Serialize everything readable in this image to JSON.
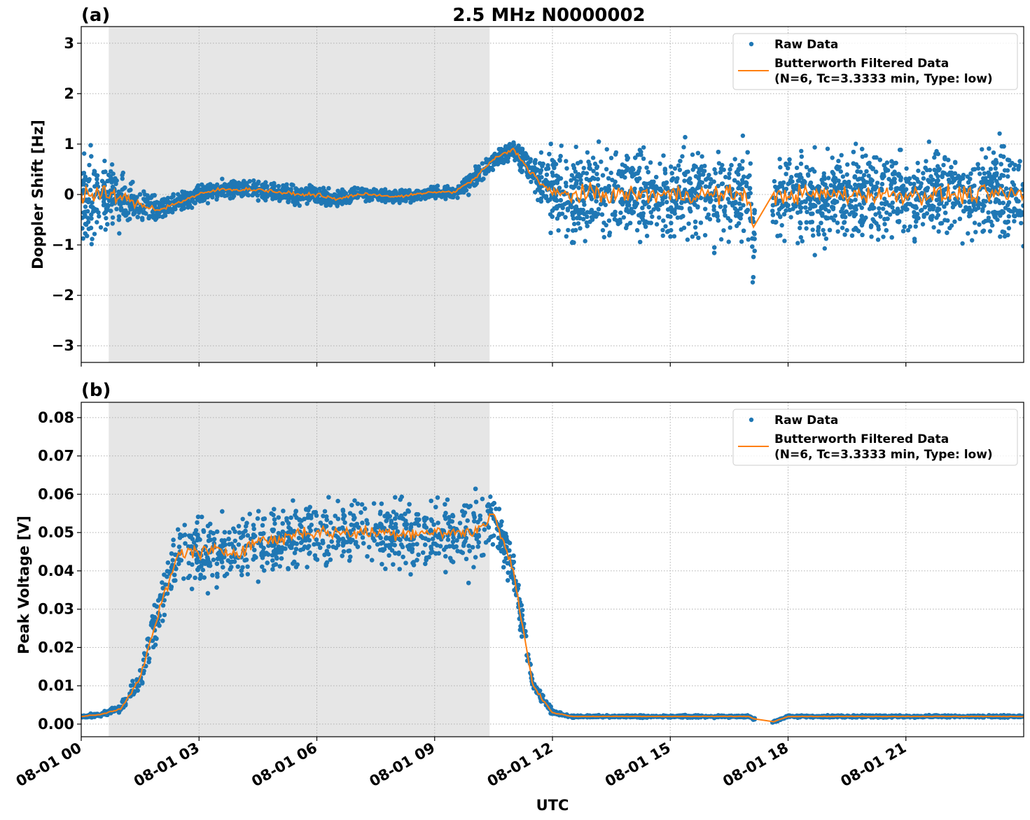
{
  "title": "2.5 MHz N0000002",
  "colors": {
    "raw": "#1f77b4",
    "filtered": "#ff7f0e",
    "shade": "#e6e6e6",
    "grid": "#b0b0b0"
  },
  "chart_data": [
    {
      "type": "scatter",
      "panel_label": "(a)",
      "ylabel": "Doppler Shift [Hz]",
      "xlabel": "",
      "xlim_hours": [
        0,
        24
      ],
      "ylim": [
        -3.33,
        3.33
      ],
      "yticks": [
        3,
        2,
        1,
        0,
        -1,
        -2,
        -3
      ],
      "ytick_labels": [
        "3",
        "2",
        "1",
        "0",
        "−1",
        "−2",
        "−3"
      ],
      "grid": true,
      "shaded_interval": [
        "08-01 00:42",
        "08-01 10:24"
      ],
      "data_gap": [
        "08-01 17:09",
        "08-01 17:36"
      ],
      "legend": {
        "placement": "top-right",
        "entries": [
          "Raw Data",
          "Butterworth Filtered Data",
          "(N=6, Tc=3.3333 min, Type: low)"
        ]
      },
      "series": [
        {
          "name": "Butterworth Filtered Data",
          "kind": "line",
          "x_hours": [
            0,
            0.5,
            1,
            1.5,
            2,
            2.5,
            3,
            3.5,
            4,
            4.5,
            5,
            5.5,
            6,
            6.5,
            7,
            7.5,
            8,
            8.5,
            9,
            9.5,
            10,
            10.5,
            11,
            11.5,
            12,
            12.5,
            13,
            13.5,
            14,
            14.5,
            15,
            15.5,
            16,
            16.5,
            17,
            17.1,
            17.6,
            18,
            18.5,
            19,
            19.5,
            20,
            20.5,
            21,
            21.5,
            22,
            22.5,
            23,
            23.5,
            24
          ],
          "y": [
            0,
            0,
            -0.05,
            -0.2,
            -0.3,
            -0.15,
            0,
            0.1,
            0.1,
            0.1,
            0.05,
            0,
            0,
            -0.1,
            0,
            0,
            -0.05,
            0,
            0.05,
            0.05,
            0.3,
            0.7,
            0.9,
            0.4,
            0,
            0,
            0,
            0,
            0,
            0,
            0,
            0,
            0,
            0,
            0,
            -0.7,
            -0.1,
            0,
            0,
            0,
            0,
            0,
            0,
            0,
            0,
            0,
            0,
            0,
            0,
            0
          ]
        },
        {
          "name": "Raw Data",
          "kind": "scatter_envelope",
          "x_hours": [
            0,
            0.5,
            1,
            1.5,
            2,
            2.5,
            3,
            3.5,
            4,
            4.5,
            5,
            5.5,
            6,
            6.5,
            7,
            7.5,
            8,
            8.5,
            9,
            9.5,
            10,
            10.5,
            11,
            11.5,
            12,
            12.5,
            13,
            13.5,
            14,
            14.5,
            15,
            15.5,
            16,
            16.5,
            17,
            17.1,
            17.6,
            18,
            18.5,
            19,
            19.5,
            20,
            20.5,
            21,
            21.5,
            22,
            22.5,
            23,
            23.5,
            24
          ],
          "half_spread": [
            1.6,
            1.4,
            1.0,
            0.6,
            0.4,
            0.35,
            0.3,
            0.3,
            0.3,
            0.3,
            0.3,
            0.3,
            0.3,
            0.3,
            0.25,
            0.2,
            0.2,
            0.2,
            0.2,
            0.2,
            0.3,
            0.3,
            0.3,
            0.6,
            1.3,
            1.5,
            1.5,
            1.5,
            1.5,
            1.5,
            1.5,
            1.5,
            1.5,
            1.5,
            1.5,
            1.5,
            1.5,
            1.5,
            1.5,
            1.5,
            1.5,
            1.5,
            1.5,
            1.5,
            1.5,
            1.5,
            1.5,
            1.5,
            1.5,
            1.5
          ]
        }
      ]
    },
    {
      "type": "scatter",
      "panel_label": "(b)",
      "ylabel": "Peak Voltage [V]",
      "xlabel": "UTC",
      "xlim_hours": [
        0,
        24
      ],
      "ylim": [
        -0.0033,
        0.084
      ],
      "yticks": [
        0.08,
        0.07,
        0.06,
        0.05,
        0.04,
        0.03,
        0.02,
        0.01,
        0.0
      ],
      "ytick_labels": [
        "0.08",
        "0.07",
        "0.06",
        "0.05",
        "0.04",
        "0.03",
        "0.02",
        "0.01",
        "0.00"
      ],
      "xticks_hours": [
        0,
        3,
        6,
        9,
        12,
        15,
        18,
        21
      ],
      "xtick_labels": [
        "08-01 00",
        "08-01 03",
        "08-01 06",
        "08-01 09",
        "08-01 12",
        "08-01 15",
        "08-01 18",
        "08-01 21"
      ],
      "grid": true,
      "shaded_interval": [
        "08-01 00:42",
        "08-01 10:24"
      ],
      "data_gap": [
        "08-01 17:09",
        "08-01 17:36"
      ],
      "legend": {
        "placement": "top-right",
        "entries": [
          "Raw Data",
          "Butterworth Filtered Data",
          "(N=6, Tc=3.3333 min, Type: low)"
        ]
      },
      "series": [
        {
          "name": "Butterworth Filtered Data",
          "kind": "line",
          "x_hours": [
            0,
            0.5,
            1,
            1.5,
            2,
            2.5,
            3,
            3.5,
            4,
            4.5,
            5,
            5.5,
            6,
            6.5,
            7,
            7.5,
            8,
            8.5,
            9,
            9.5,
            10,
            10.5,
            11,
            11.5,
            12,
            12.5,
            13,
            14,
            15,
            16,
            17,
            17.1,
            17.6,
            18,
            19,
            20,
            21,
            22,
            23,
            24
          ],
          "y": [
            0.002,
            0.0025,
            0.004,
            0.012,
            0.03,
            0.045,
            0.045,
            0.045,
            0.045,
            0.048,
            0.048,
            0.05,
            0.05,
            0.05,
            0.05,
            0.05,
            0.05,
            0.05,
            0.05,
            0.05,
            0.05,
            0.055,
            0.04,
            0.01,
            0.003,
            0.002,
            0.002,
            0.002,
            0.002,
            0.002,
            0.002,
            0.0015,
            0.0005,
            0.002,
            0.002,
            0.002,
            0.002,
            0.002,
            0.002,
            0.002
          ]
        },
        {
          "name": "Raw Data",
          "kind": "scatter_envelope",
          "x_hours": [
            0,
            0.5,
            1,
            1.5,
            2,
            2.5,
            3,
            3.5,
            4,
            4.5,
            5,
            5.5,
            6,
            6.5,
            7,
            7.5,
            8,
            8.5,
            9,
            9.5,
            10,
            10.5,
            11,
            11.5,
            12,
            12.5,
            13,
            14,
            15,
            16,
            17,
            17.1,
            17.6,
            18,
            19,
            20,
            21,
            22,
            23,
            24
          ],
          "half_spread": [
            0.0005,
            0.001,
            0.002,
            0.006,
            0.012,
            0.015,
            0.015,
            0.015,
            0.015,
            0.015,
            0.015,
            0.015,
            0.015,
            0.015,
            0.015,
            0.015,
            0.015,
            0.015,
            0.015,
            0.015,
            0.015,
            0.012,
            0.01,
            0.004,
            0.001,
            0.0005,
            0.0005,
            0.0005,
            0.0005,
            0.0005,
            0.0005,
            0.0005,
            0.0005,
            0.0005,
            0.0005,
            0.0005,
            0.0005,
            0.0005,
            0.0005,
            0.0005
          ]
        }
      ]
    }
  ]
}
